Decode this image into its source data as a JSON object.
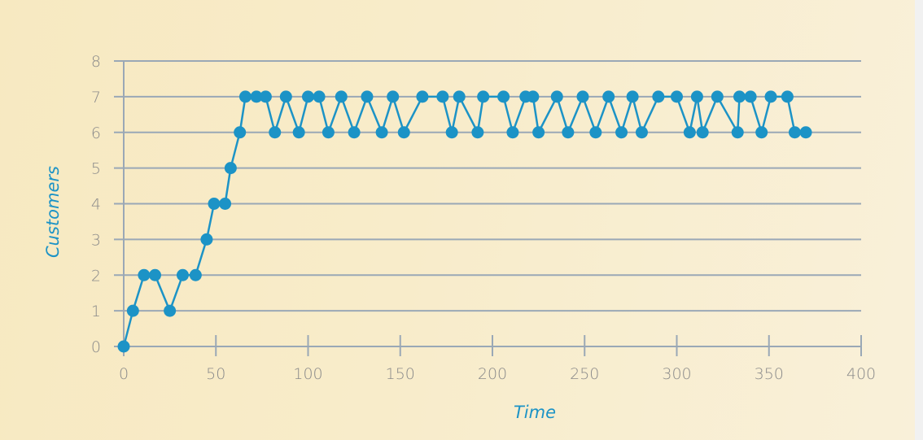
{
  "chart_data": {
    "type": "line",
    "title": "",
    "xlabel": "Time",
    "ylabel": "Customers",
    "xlim": [
      0,
      400
    ],
    "ylim": [
      0,
      8
    ],
    "x_ticks": [
      "0",
      "50",
      "100",
      "150",
      "200",
      "250",
      "300",
      "350",
      "400"
    ],
    "y_ticks": [
      "0",
      "1",
      "2",
      "3",
      "4",
      "5",
      "6",
      "7",
      "8"
    ],
    "grid": "horizontal",
    "legend": "none",
    "series": [
      {
        "color": "#1c93c6",
        "x": [
          0,
          5,
          11,
          17,
          25,
          32,
          39,
          45,
          49,
          55,
          58,
          63,
          66,
          72,
          77,
          82,
          88,
          95,
          100,
          106,
          111,
          118,
          125,
          132,
          140,
          146,
          152,
          162,
          173,
          178,
          182,
          192,
          195,
          206,
          211,
          218,
          222,
          225,
          235,
          241,
          249,
          256,
          263,
          270,
          276,
          281,
          290,
          300,
          307,
          311,
          314,
          322,
          333,
          334,
          340,
          346,
          351,
          360,
          364,
          370
        ],
        "y": [
          0,
          1,
          2,
          2,
          1,
          2,
          2,
          3,
          4,
          4,
          5,
          6,
          7,
          7,
          7,
          6,
          7,
          6,
          7,
          7,
          6,
          7,
          6,
          7,
          6,
          7,
          6,
          7,
          7,
          6,
          7,
          6,
          7,
          7,
          6,
          7,
          7,
          6,
          7,
          6,
          7,
          6,
          7,
          6,
          7,
          6,
          7,
          7,
          6,
          7,
          6,
          7,
          6,
          7,
          7,
          6,
          7,
          7,
          6,
          6
        ]
      }
    ]
  }
}
